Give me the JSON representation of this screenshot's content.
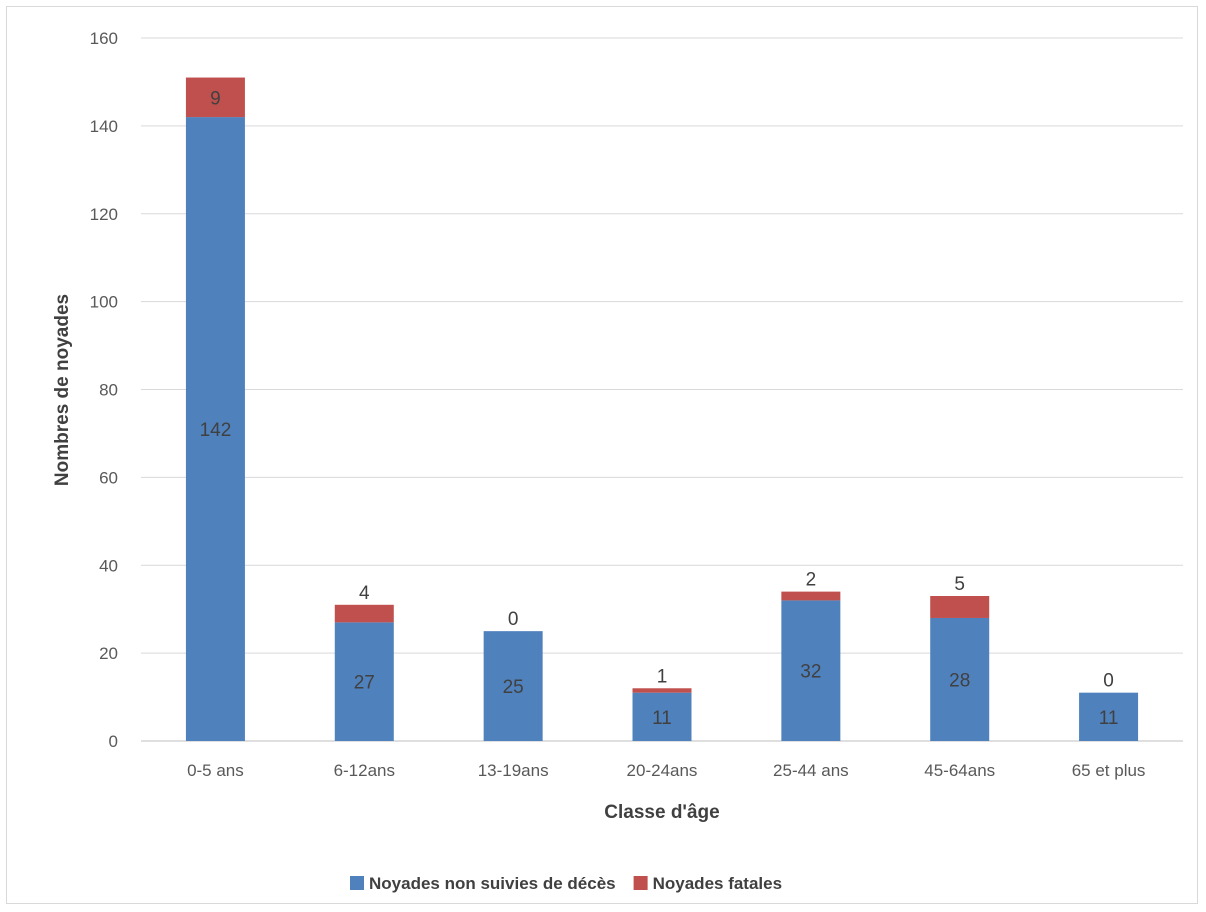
{
  "chart_data": {
    "type": "bar",
    "stacked": true,
    "categories": [
      "0-5 ans",
      "6-12ans",
      "13-19ans",
      "20-24ans",
      "25-44 ans",
      "45-64ans",
      "65 et plus"
    ],
    "series": [
      {
        "name": "Noyades non suivies de décès",
        "color": "#4f81bd",
        "values": [
          142,
          27,
          25,
          11,
          32,
          28,
          11
        ]
      },
      {
        "name": "Noyades fatales",
        "color": "#c0504d",
        "values": [
          9,
          4,
          0,
          1,
          2,
          5,
          0
        ]
      }
    ],
    "title": "",
    "xlabel": "Classe d'âge",
    "ylabel": "Nombres de noyades",
    "ylim": [
      0,
      160
    ],
    "yticks": [
      0,
      20,
      40,
      60,
      80,
      100,
      120,
      140,
      160
    ],
    "grid": true,
    "legend": "bottom"
  }
}
